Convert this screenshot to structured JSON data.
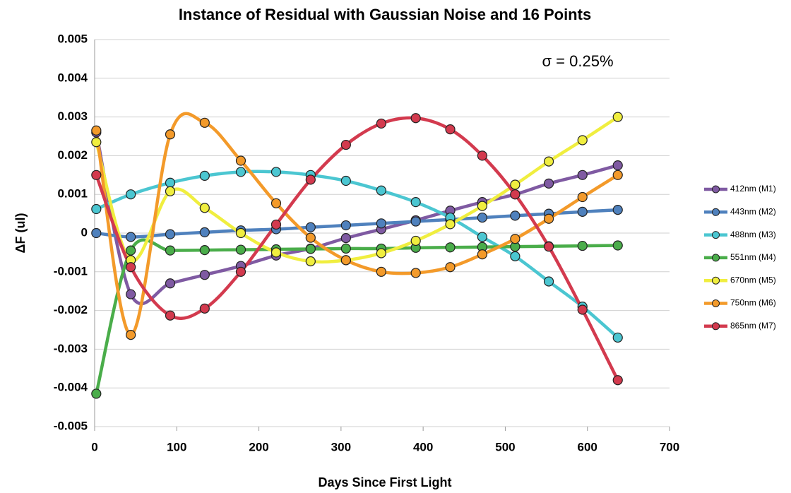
{
  "chart_data": {
    "type": "line",
    "title": "Instance of Residual with Gaussian Noise and 16 Points",
    "annotation": "σ = 0.25%",
    "x_label": "Days Since First Light",
    "y_label": "ΔF (ul)",
    "x": [
      2,
      44,
      92,
      134,
      178,
      221,
      263,
      306,
      349,
      391,
      433,
      472,
      512,
      553,
      594,
      637
    ],
    "series": [
      {
        "name": "412nm (M1)",
        "color": "#7f5aa2",
        "values": [
          0.0026,
          -0.00158,
          -0.0013,
          -0.00108,
          -0.00085,
          -0.00058,
          -0.0004,
          -0.00013,
          0.0001,
          0.00033,
          0.00058,
          0.0008,
          0.001,
          0.00128,
          0.0015,
          0.00175
        ]
      },
      {
        "name": "443nm (M2)",
        "color": "#4f81bd",
        "values": [
          0,
          -0.0001,
          -3e-05,
          2e-05,
          7e-05,
          0.0001,
          0.00015,
          0.0002,
          0.00025,
          0.0003,
          0.00035,
          0.0004,
          0.00045,
          0.0005,
          0.00055,
          0.0006
        ]
      },
      {
        "name": "488nm (M3)",
        "color": "#4bc6d1",
        "values": [
          0.00062,
          0.001,
          0.0013,
          0.00148,
          0.00158,
          0.00158,
          0.0015,
          0.00135,
          0.0011,
          0.0008,
          0.0004,
          -0.0001,
          -0.0006,
          -0.00125,
          -0.0019,
          -0.0027
        ]
      },
      {
        "name": "551nm (M4)",
        "color": "#4aad4a",
        "values": [
          -0.00415,
          -0.00045,
          -0.00045,
          -0.00044,
          -0.00043,
          -0.00042,
          -0.00041,
          -0.0004,
          -0.0004,
          -0.00038,
          -0.00037,
          -0.00036,
          -0.00035,
          -0.00034,
          -0.00033,
          -0.00032
        ]
      },
      {
        "name": "670nm (M5)",
        "color": "#f0ee3f",
        "values": [
          0.00235,
          -0.0007,
          0.00108,
          0.00065,
          0,
          -0.0005,
          -0.00073,
          -0.0007,
          -0.00052,
          -0.0002,
          0.00023,
          0.0007,
          0.00125,
          0.00185,
          0.0024,
          0.003
        ]
      },
      {
        "name": "750nm (M6)",
        "color": "#f39a2a",
        "values": [
          0.00265,
          -0.00263,
          0.00255,
          0.00285,
          0.00187,
          0.00077,
          -0.00012,
          -0.0007,
          -0.001,
          -0.00103,
          -0.00088,
          -0.00055,
          -0.00015,
          0.00037,
          0.00093,
          0.0015
        ]
      },
      {
        "name": "865nm (M7)",
        "color": "#d33a4e",
        "values": [
          0.0015,
          -0.00088,
          -0.00213,
          -0.00195,
          -0.001,
          0.00022,
          0.00138,
          0.00228,
          0.00283,
          0.00297,
          0.00268,
          0.002,
          0.001,
          -0.00035,
          -0.00198,
          -0.0038
        ]
      }
    ],
    "xlim": [
      0,
      700
    ],
    "xticks": [
      0,
      100,
      200,
      300,
      400,
      500,
      600,
      700
    ],
    "ylim": [
      -0.005,
      0.005
    ],
    "yticks": [
      -0.005,
      -0.004,
      -0.003,
      -0.002,
      -0.001,
      0,
      0.001,
      0.002,
      0.003,
      0.004,
      0.005
    ],
    "grid": true,
    "legend": "right",
    "smooth": true
  }
}
